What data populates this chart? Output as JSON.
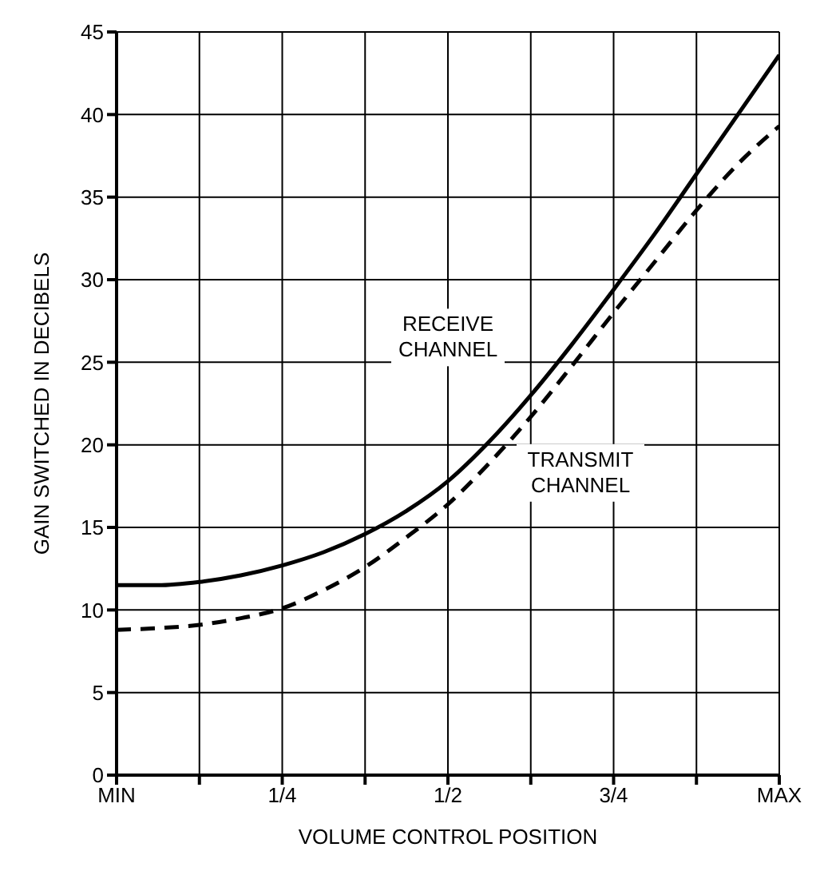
{
  "chart_data": {
    "type": "line",
    "xlabel": "VOLUME CONTROL POSITION",
    "ylabel": "GAIN SWITCHED IN DECIBELS",
    "x": [
      0,
      0.0625,
      0.125,
      0.1875,
      0.25,
      0.3125,
      0.375,
      0.4375,
      0.5,
      0.5625,
      0.625,
      0.6875,
      0.75,
      0.8125,
      0.875,
      0.9375,
      1
    ],
    "series": [
      {
        "color": "#000000",
        "line_style": "solid",
        "values": [
          11.5,
          11.5,
          11.7,
          12.1,
          12.7,
          13.5,
          14.6,
          16,
          17.8,
          20.2,
          23,
          26.1,
          29.4,
          32.8,
          36.4,
          40,
          43.6
        ]
      },
      {
        "color": "#000000",
        "line_style": "dashed",
        "values": [
          8.8,
          8.9,
          9.1,
          9.5,
          10.1,
          11.2,
          12.6,
          14.4,
          16.4,
          18.9,
          21.7,
          24.8,
          28,
          31.1,
          34.2,
          37,
          39.3
        ]
      }
    ],
    "xlim": [
      0,
      1
    ],
    "ylim": [
      0,
      45
    ],
    "xticks": [
      {
        "value": 0,
        "label": "MIN"
      },
      {
        "value": 0.125,
        "label": null
      },
      {
        "value": 0.25,
        "label": "1/4"
      },
      {
        "value": 0.375,
        "label": null
      },
      {
        "value": 0.5,
        "label": "1/2"
      },
      {
        "value": 0.625,
        "label": null
      },
      {
        "value": 0.75,
        "label": "3/4"
      },
      {
        "value": 0.875,
        "label": null
      },
      {
        "value": 1,
        "label": "MAX"
      }
    ],
    "yticks": [
      0,
      5,
      10,
      15,
      20,
      25,
      30,
      35,
      40,
      45
    ],
    "annotations": [
      "RECEIVE CHANNEL",
      "TRANSMIT CHANNEL"
    ],
    "grid": true,
    "legend": false,
    "marker": "none"
  }
}
